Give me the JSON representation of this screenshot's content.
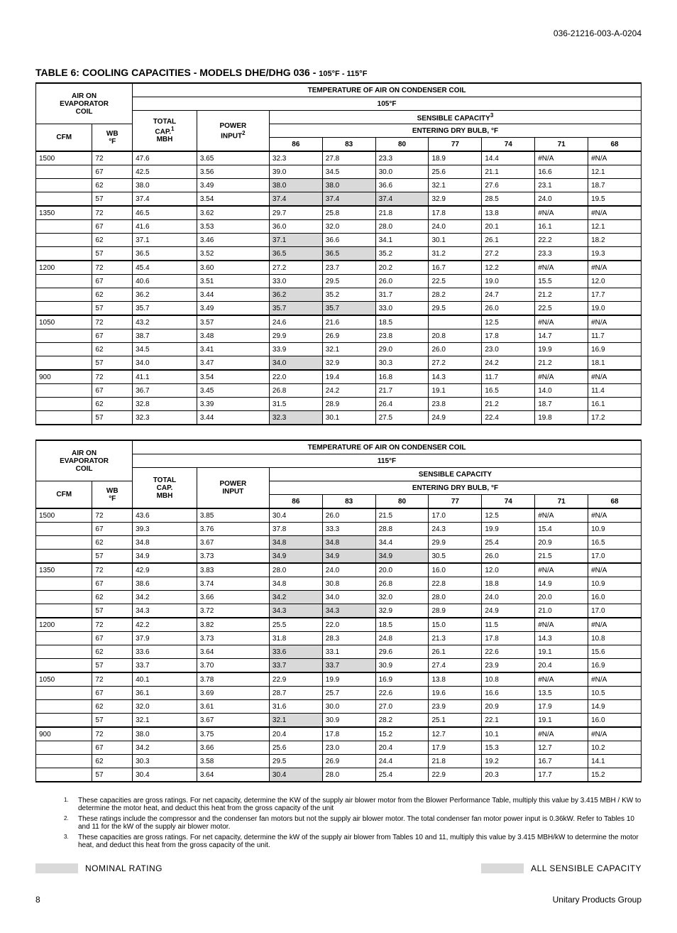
{
  "header": {
    "doc_code": "036-21216-003-A-0204"
  },
  "title": {
    "main": "TABLE 6: COOLING CAPACITIES - MODELS DHE/DHG 036 -",
    "sub": "105°F - 115°F"
  },
  "shared_headers": {
    "air_on_evap": "AIR ON EVAPORATOR COIL",
    "cond_coil": "TEMPERATURE OF AIR ON CONDENSER COIL",
    "total_cap_sup": "TOTAL CAP.",
    "total_cap_nosup": "TOTAL CAP.",
    "mbh": "MBH",
    "power_input_sup": "POWER INPUT",
    "power_input_nosup": "POWER INPUT",
    "sensible_sup": "SENSIBLE CAPACITY",
    "sensible_nosup": "SENSIBLE CAPACITY",
    "edb": "ENTERING DRY BULB, °F",
    "cfm": "CFM",
    "wb": "WB °F",
    "dry_bulbs": [
      "86",
      "83",
      "80",
      "77",
      "74",
      "71",
      "68"
    ]
  },
  "table1": {
    "cond_temp": "105°F",
    "sup": {
      "cap": "1",
      "power": "2",
      "sens": "3"
    },
    "groups": [
      {
        "cfm": "1500",
        "rows": [
          {
            "wb": "72",
            "cap": "47.6",
            "pwr": "3.65",
            "d": [
              "32.3",
              "27.8",
              "23.3",
              "18.9",
              "14.4",
              "#N/A",
              "#N/A"
            ],
            "sh": []
          },
          {
            "wb": "67",
            "cap": "42.5",
            "pwr": "3.56",
            "d": [
              "39.0",
              "34.5",
              "30.0",
              "25.6",
              "21.1",
              "16.6",
              "12.1"
            ],
            "sh": []
          },
          {
            "wb": "62",
            "cap": "38.0",
            "pwr": "3.49",
            "d": [
              "38.0",
              "38.0",
              "36.6",
              "32.1",
              "27.6",
              "23.1",
              "18.7"
            ],
            "sh": [
              0,
              1
            ]
          },
          {
            "wb": "57",
            "cap": "37.4",
            "pwr": "3.54",
            "d": [
              "37.4",
              "37.4",
              "37.4",
              "32.9",
              "28.5",
              "24.0",
              "19.5"
            ],
            "sh": [
              0,
              1,
              2
            ]
          }
        ]
      },
      {
        "cfm": "1350",
        "rows": [
          {
            "wb": "72",
            "cap": "46.5",
            "pwr": "3.62",
            "d": [
              "29.7",
              "25.8",
              "21.8",
              "17.8",
              "13.8",
              "#N/A",
              "#N/A"
            ],
            "sh": []
          },
          {
            "wb": "67",
            "cap": "41.6",
            "pwr": "3.53",
            "d": [
              "36.0",
              "32.0",
              "28.0",
              "24.0",
              "20.1",
              "16.1",
              "12.1"
            ],
            "sh": []
          },
          {
            "wb": "62",
            "cap": "37.1",
            "pwr": "3.46",
            "d": [
              "37.1",
              "36.6",
              "34.1",
              "30.1",
              "26.1",
              "22.2",
              "18.2"
            ],
            "sh": [
              0
            ]
          },
          {
            "wb": "57",
            "cap": "36.5",
            "pwr": "3.52",
            "d": [
              "36.5",
              "36.5",
              "35.2",
              "31.2",
              "27.2",
              "23.3",
              "19.3"
            ],
            "sh": [
              0,
              1
            ]
          }
        ]
      },
      {
        "cfm": "1200",
        "rows": [
          {
            "wb": "72",
            "cap": "45.4",
            "pwr": "3.60",
            "d": [
              "27.2",
              "23.7",
              "20.2",
              "16.7",
              "12.2",
              "#N/A",
              "#N/A"
            ],
            "sh": []
          },
          {
            "wb": "67",
            "cap": "40.6",
            "pwr": "3.51",
            "d": [
              "33.0",
              "29.5",
              "26.0",
              "22.5",
              "19.0",
              "15.5",
              "12.0"
            ],
            "sh": []
          },
          {
            "wb": "62",
            "cap": "36.2",
            "pwr": "3.44",
            "d": [
              "36.2",
              "35.2",
              "31.7",
              "28.2",
              "24.7",
              "21.2",
              "17.7"
            ],
            "sh": [
              0
            ]
          },
          {
            "wb": "57",
            "cap": "35.7",
            "pwr": "3.49",
            "d": [
              "35.7",
              "35.7",
              "33.0",
              "29.5",
              "26.0",
              "22.5",
              "19.0"
            ],
            "sh": [
              0,
              1
            ]
          }
        ]
      },
      {
        "cfm": "1050",
        "rows": [
          {
            "wb": "72",
            "cap": "43.2",
            "pwr": "3.57",
            "d": [
              "24.6",
              "21.6",
              "18.5",
              "",
              "12.5",
              "#N/A",
              "#N/A"
            ],
            "sh": []
          },
          {
            "wb": "67",
            "cap": "38.7",
            "pwr": "3.48",
            "d": [
              "29.9",
              "26.9",
              "23.8",
              "20.8",
              "17.8",
              "14.7",
              "11.7"
            ],
            "sh": []
          },
          {
            "wb": "62",
            "cap": "34.5",
            "pwr": "3.41",
            "d": [
              "33.9",
              "32.1",
              "29.0",
              "26.0",
              "23.0",
              "19.9",
              "16.9"
            ],
            "sh": []
          },
          {
            "wb": "57",
            "cap": "34.0",
            "pwr": "3.47",
            "d": [
              "34.0",
              "32.9",
              "30.3",
              "27.2",
              "24.2",
              "21.2",
              "18.1"
            ],
            "sh": [
              0
            ]
          }
        ]
      },
      {
        "cfm": "900",
        "rows": [
          {
            "wb": "72",
            "cap": "41.1",
            "pwr": "3.54",
            "d": [
              "22.0",
              "19.4",
              "16.8",
              "14.3",
              "11.7",
              "#N/A",
              "#N/A"
            ],
            "sh": []
          },
          {
            "wb": "67",
            "cap": "36.7",
            "pwr": "3.45",
            "d": [
              "26.8",
              "24.2",
              "21.7",
              "19.1",
              "16.5",
              "14.0",
              "11.4"
            ],
            "sh": []
          },
          {
            "wb": "62",
            "cap": "32.8",
            "pwr": "3.39",
            "d": [
              "31.5",
              "28.9",
              "26.4",
              "23.8",
              "21.2",
              "18.7",
              "16.1"
            ],
            "sh": []
          },
          {
            "wb": "57",
            "cap": "32.3",
            "pwr": "3.44",
            "d": [
              "32.3",
              "30.1",
              "27.5",
              "24.9",
              "22.4",
              "19.8",
              "17.2"
            ],
            "sh": [
              0
            ]
          }
        ]
      }
    ]
  },
  "table2": {
    "cond_temp": "115°F",
    "groups": [
      {
        "cfm": "1500",
        "rows": [
          {
            "wb": "72",
            "cap": "43.6",
            "pwr": "3.85",
            "d": [
              "30.4",
              "26.0",
              "21.5",
              "17.0",
              "12.5",
              "#N/A",
              "#N/A"
            ],
            "sh": []
          },
          {
            "wb": "67",
            "cap": "39.3",
            "pwr": "3.76",
            "d": [
              "37.8",
              "33.3",
              "28.8",
              "24.3",
              "19.9",
              "15.4",
              "10.9"
            ],
            "sh": []
          },
          {
            "wb": "62",
            "cap": "34.8",
            "pwr": "3.67",
            "d": [
              "34.8",
              "34.8",
              "34.4",
              "29.9",
              "25.4",
              "20.9",
              "16.5"
            ],
            "sh": [
              0,
              1
            ]
          },
          {
            "wb": "57",
            "cap": "34.9",
            "pwr": "3.73",
            "d": [
              "34.9",
              "34.9",
              "34.9",
              "30.5",
              "26.0",
              "21.5",
              "17.0"
            ],
            "sh": [
              0,
              1,
              2
            ]
          }
        ]
      },
      {
        "cfm": "1350",
        "rows": [
          {
            "wb": "72",
            "cap": "42.9",
            "pwr": "3.83",
            "d": [
              "28.0",
              "24.0",
              "20.0",
              "16.0",
              "12.0",
              "#N/A",
              "#N/A"
            ],
            "sh": []
          },
          {
            "wb": "67",
            "cap": "38.6",
            "pwr": "3.74",
            "d": [
              "34.8",
              "30.8",
              "26.8",
              "22.8",
              "18.8",
              "14.9",
              "10.9"
            ],
            "sh": []
          },
          {
            "wb": "62",
            "cap": "34.2",
            "pwr": "3.66",
            "d": [
              "34.2",
              "34.0",
              "32.0",
              "28.0",
              "24.0",
              "20.0",
              "16.0"
            ],
            "sh": [
              0
            ]
          },
          {
            "wb": "57",
            "cap": "34.3",
            "pwr": "3.72",
            "d": [
              "34.3",
              "34.3",
              "32.9",
              "28.9",
              "24.9",
              "21.0",
              "17.0"
            ],
            "sh": [
              0,
              1
            ]
          }
        ]
      },
      {
        "cfm": "1200",
        "rows": [
          {
            "wb": "72",
            "cap": "42.2",
            "pwr": "3.82",
            "d": [
              "25.5",
              "22.0",
              "18.5",
              "15.0",
              "11.5",
              "#N/A",
              "#N/A"
            ],
            "sh": []
          },
          {
            "wb": "67",
            "cap": "37.9",
            "pwr": "3.73",
            "d": [
              "31.8",
              "28.3",
              "24.8",
              "21.3",
              "17.8",
              "14.3",
              "10.8"
            ],
            "sh": []
          },
          {
            "wb": "62",
            "cap": "33.6",
            "pwr": "3.64",
            "d": [
              "33.6",
              "33.1",
              "29.6",
              "26.1",
              "22.6",
              "19.1",
              "15.6"
            ],
            "sh": [
              0
            ]
          },
          {
            "wb": "57",
            "cap": "33.7",
            "pwr": "3.70",
            "d": [
              "33.7",
              "33.7",
              "30.9",
              "27.4",
              "23.9",
              "20.4",
              "16.9"
            ],
            "sh": [
              0,
              1
            ]
          }
        ]
      },
      {
        "cfm": "1050",
        "rows": [
          {
            "wb": "72",
            "cap": "40.1",
            "pwr": "3.78",
            "d": [
              "22.9",
              "19.9",
              "16.9",
              "13.8",
              "10.8",
              "#N/A",
              "#N/A"
            ],
            "sh": []
          },
          {
            "wb": "67",
            "cap": "36.1",
            "pwr": "3.69",
            "d": [
              "28.7",
              "25.7",
              "22.6",
              "19.6",
              "16.6",
              "13.5",
              "10.5"
            ],
            "sh": []
          },
          {
            "wb": "62",
            "cap": "32.0",
            "pwr": "3.61",
            "d": [
              "31.6",
              "30.0",
              "27.0",
              "23.9",
              "20.9",
              "17.9",
              "14.9"
            ],
            "sh": []
          },
          {
            "wb": "57",
            "cap": "32.1",
            "pwr": "3.67",
            "d": [
              "32.1",
              "30.9",
              "28.2",
              "25.1",
              "22.1",
              "19.1",
              "16.0"
            ],
            "sh": [
              0
            ]
          }
        ]
      },
      {
        "cfm": "900",
        "rows": [
          {
            "wb": "72",
            "cap": "38.0",
            "pwr": "3.75",
            "d": [
              "20.4",
              "17.8",
              "15.2",
              "12.7",
              "10.1",
              "#N/A",
              "#N/A"
            ],
            "sh": []
          },
          {
            "wb": "67",
            "cap": "34.2",
            "pwr": "3.66",
            "d": [
              "25.6",
              "23.0",
              "20.4",
              "17.9",
              "15.3",
              "12.7",
              "10.2"
            ],
            "sh": []
          },
          {
            "wb": "62",
            "cap": "30.3",
            "pwr": "3.58",
            "d": [
              "29.5",
              "26.9",
              "24.4",
              "21.8",
              "19.2",
              "16.7",
              "14.1"
            ],
            "sh": []
          },
          {
            "wb": "57",
            "cap": "30.4",
            "pwr": "3.64",
            "d": [
              "30.4",
              "28.0",
              "25.4",
              "22.9",
              "20.3",
              "17.7",
              "15.2"
            ],
            "sh": [
              0
            ]
          }
        ]
      }
    ]
  },
  "footnotes": [
    {
      "n": "1.",
      "t": "These capacities are gross ratings. For net capacity, determine the KW of the supply air blower motor from the Blower Performance Table, multiply this value by 3.415 MBH / KW to determine the motor heat, and deduct this heat from the gross capacity of the unit"
    },
    {
      "n": "2.",
      "t": "These ratings include the compressor and the condenser fan motors but not the supply air blower motor.  The total condenser fan motor power input is 0.36kW.  Refer to Tables 10 and 11  for the kW of the supply air blower motor."
    },
    {
      "n": "3.",
      "t": "These capacities are gross ratings.  For net capacity, determine the kW of the supply air blower from Tables 10 and 11, multiply this value by 3.415 MBH/kW to determine the motor heat, and deduct this heat from the gross capacity of the unit."
    }
  ],
  "legend": {
    "nominal": "NOMINAL RATING",
    "all_sensible": "ALL SENSIBLE CAPACITY"
  },
  "footer": {
    "page": "8",
    "company": "Unitary Products Group"
  },
  "colors": {
    "shade": "#d9d9d9",
    "text": "#000000",
    "bg": "#ffffff"
  }
}
